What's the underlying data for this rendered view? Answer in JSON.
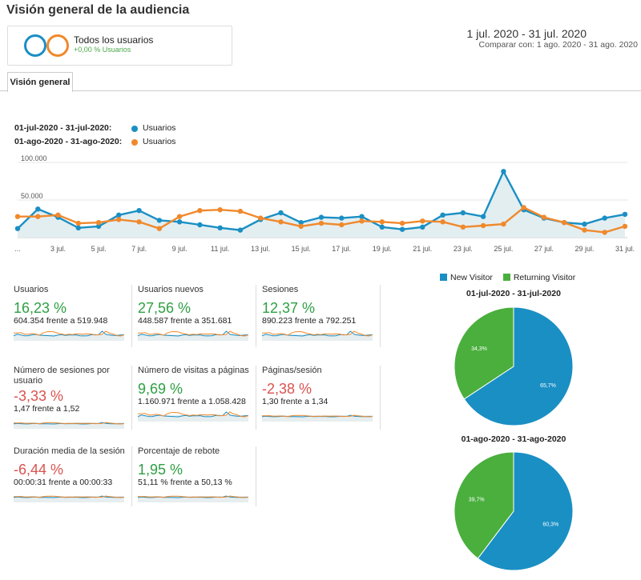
{
  "page_title": "Visión general de la audiencia",
  "segment": {
    "name": "Todos los usuarios",
    "change": "+0,00 % Usuarios"
  },
  "date_range": {
    "main": "1 jul. 2020 - 31 jul. 2020",
    "compare": "Comparar con: 1 ago. 2020 - 31 ago. 2020"
  },
  "tabs": [
    {
      "label": "Visión general"
    }
  ],
  "legend": [
    {
      "range": "01-jul-2020 - 31-jul-2020:",
      "metric": "Usuarios",
      "color": "#1a8fc4"
    },
    {
      "range": "01-ago-2020 - 31-ago-2020:",
      "metric": "Usuarios",
      "color": "#f0892c"
    }
  ],
  "chart_data": {
    "type": "line",
    "y_ticks": [
      "100.000",
      "50.000"
    ],
    "ylim": [
      0,
      110000
    ],
    "x_ticks": [
      "...",
      "3 jul.",
      "5 jul.",
      "7 jul.",
      "9 jul.",
      "11 jul.",
      "13 jul.",
      "15 jul.",
      "17 jul.",
      "19 jul.",
      "21 jul.",
      "23 jul.",
      "25 jul.",
      "27 jul.",
      "29 jul.",
      "31 jul."
    ],
    "x": [
      1,
      2,
      3,
      4,
      5,
      6,
      7,
      8,
      9,
      10,
      11,
      12,
      13,
      14,
      15,
      16,
      17,
      18,
      19,
      20,
      21,
      22,
      23,
      24,
      25,
      26,
      27,
      28,
      29,
      30,
      31
    ],
    "series": [
      {
        "name": "Usuarios",
        "color": "#1a8fc4",
        "values": [
          12000,
          38000,
          27000,
          13000,
          15000,
          30000,
          36000,
          23000,
          21000,
          17000,
          13000,
          10000,
          24000,
          33000,
          20000,
          27000,
          26000,
          28000,
          14000,
          11000,
          14000,
          30000,
          33000,
          28000,
          88000,
          37000,
          26000,
          20000,
          18000,
          26000,
          31000
        ]
      },
      {
        "name": "Usuarios",
        "color": "#f0892c",
        "values": [
          28000,
          28000,
          30000,
          19000,
          20000,
          24000,
          21000,
          12000,
          28000,
          36000,
          37000,
          35000,
          26000,
          21000,
          15000,
          19000,
          17000,
          22000,
          21000,
          19000,
          22000,
          21000,
          14000,
          16000,
          18000,
          40000,
          27000,
          20000,
          10000,
          7000,
          15000
        ]
      }
    ]
  },
  "metrics": [
    {
      "name": "Usuarios",
      "pct": "16,23 %",
      "cmp": "604.354 frente a 519.948",
      "trend": "pos"
    },
    {
      "name": "Usuarios nuevos",
      "pct": "27,56 %",
      "cmp": "448.587 frente a 351.681",
      "trend": "pos"
    },
    {
      "name": "Sesiones",
      "pct": "12,37 %",
      "cmp": "890.223 frente a 792.251",
      "trend": "pos"
    },
    {
      "name": "Número de sesiones por usuario",
      "pct": "-3,33 %",
      "cmp": "1,47 frente a 1,52",
      "trend": "neg"
    },
    {
      "name": "Número de visitas a páginas",
      "pct": "9,69 %",
      "cmp": "1.160.971 frente a 1.058.428",
      "trend": "pos"
    },
    {
      "name": "Páginas/sesión",
      "pct": "-2,38 %",
      "cmp": "1,30 frente a 1,34",
      "trend": "neg"
    },
    {
      "name": "Duración media de la sesión",
      "pct": "-6,44 %",
      "cmp": "00:00:31 frente a 00:00:33",
      "trend": "neg"
    },
    {
      "name": "Porcentaje de rebote",
      "pct": "1,95 %",
      "cmp": "51,11 % frente a 50,13 %",
      "trend": "pos"
    }
  ],
  "pie_legend": [
    {
      "label": "New Visitor",
      "color": "#1a8fc4"
    },
    {
      "label": "Returning Visitor",
      "color": "#4aaf3d"
    }
  ],
  "pies": [
    {
      "title": "01-jul-2020 - 31-jul-2020",
      "slices": [
        {
          "label": "65,7%",
          "value": 65.7,
          "color": "#1a8fc4"
        },
        {
          "label": "34,3%",
          "value": 34.3,
          "color": "#4aaf3d"
        }
      ]
    },
    {
      "title": "01-ago-2020 - 31-ago-2020",
      "slices": [
        {
          "label": "60,3%",
          "value": 60.3,
          "color": "#1a8fc4"
        },
        {
          "label": "39,7%",
          "value": 39.7,
          "color": "#4aaf3d"
        }
      ]
    }
  ]
}
